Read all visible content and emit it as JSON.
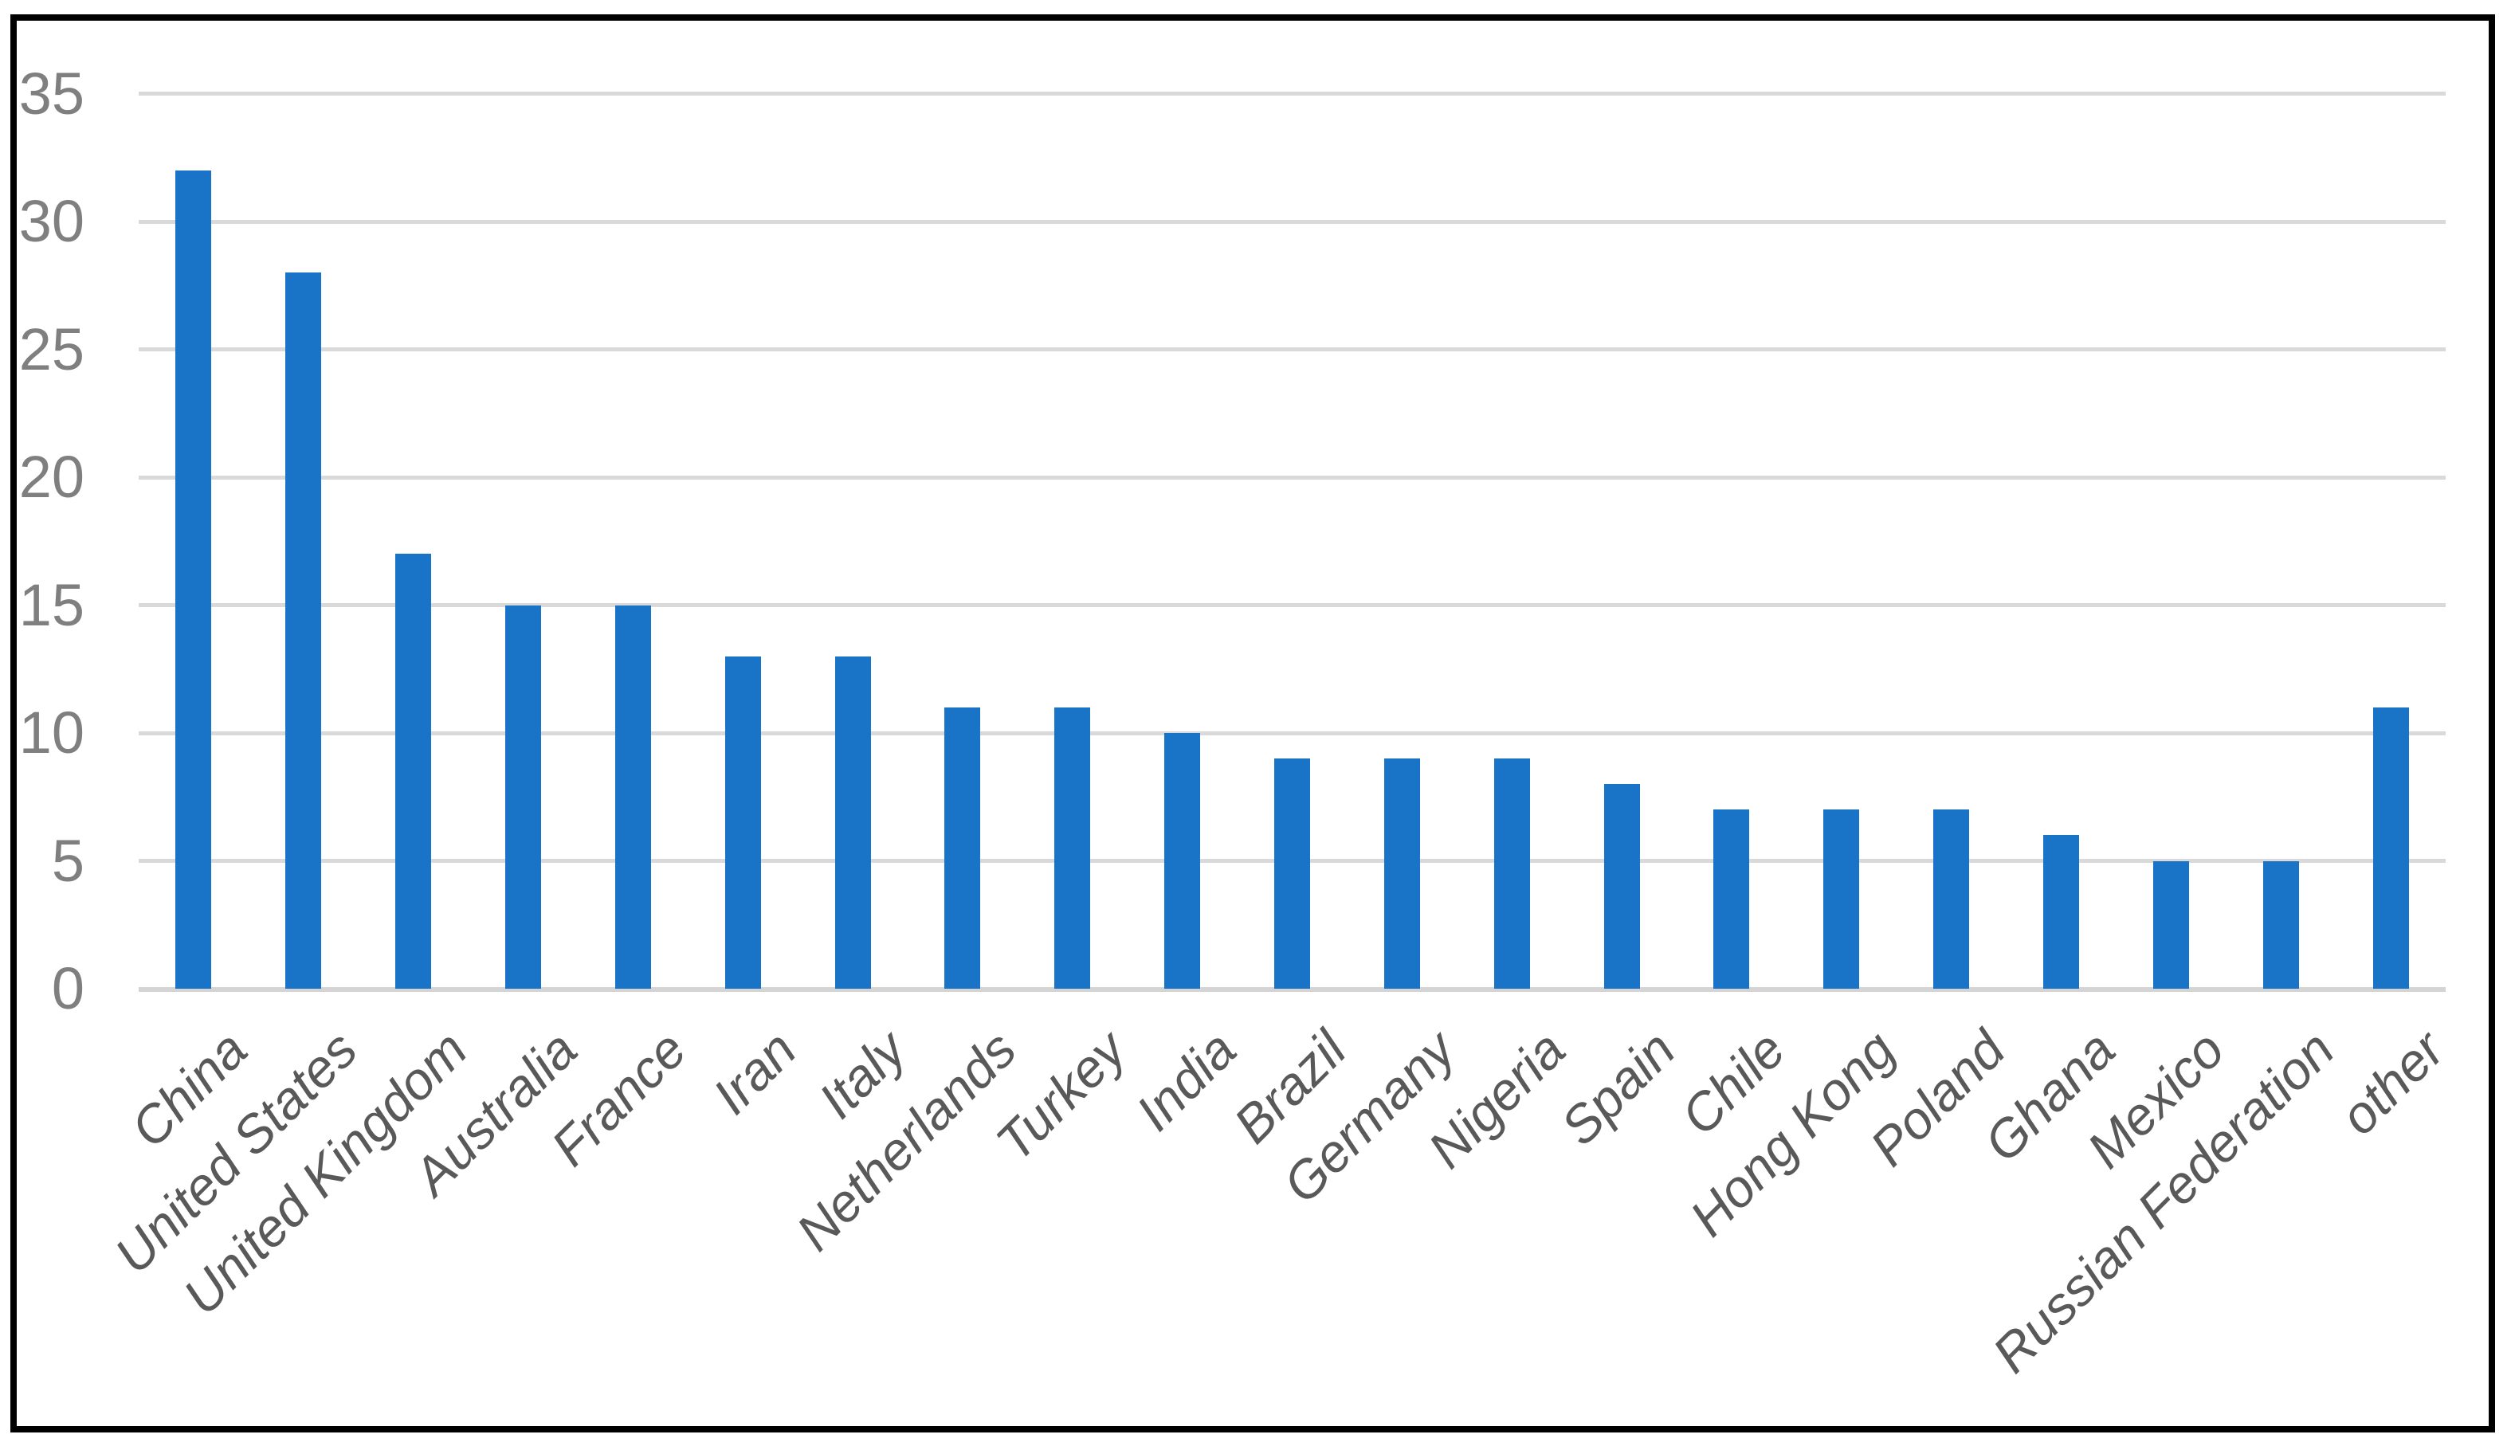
{
  "chart_data": {
    "type": "bar",
    "title": "",
    "xlabel": "",
    "ylabel": "",
    "categories": [
      "China",
      "United States",
      "United Kingdom",
      "Australia",
      "France",
      "Iran",
      "Italy",
      "Netherlands",
      "Turkey",
      "India",
      "Brazil",
      "Germany",
      "Nigeria",
      "Spain",
      "Chile",
      "Hong Kong",
      "Poland",
      "Ghana",
      "Mexico",
      "Russian Federation",
      "other"
    ],
    "values": [
      32,
      28,
      17,
      15,
      15,
      13,
      13,
      11,
      11,
      10,
      9,
      9,
      9,
      8,
      7,
      7,
      7,
      6,
      5,
      5,
      11
    ],
    "ylim": [
      0,
      35
    ],
    "yticks": [
      0,
      5,
      10,
      15,
      20,
      25,
      30,
      35
    ],
    "grid": true,
    "legend": false,
    "colors": {
      "bar": "#1974C8",
      "gridline": "#D9D9D9",
      "axis_line": "#D4D4D4",
      "y_tick_text": "#7F7F7F",
      "x_tick_text": "#595959",
      "frame_border": "#000000",
      "background": "#FFFFFF"
    }
  }
}
